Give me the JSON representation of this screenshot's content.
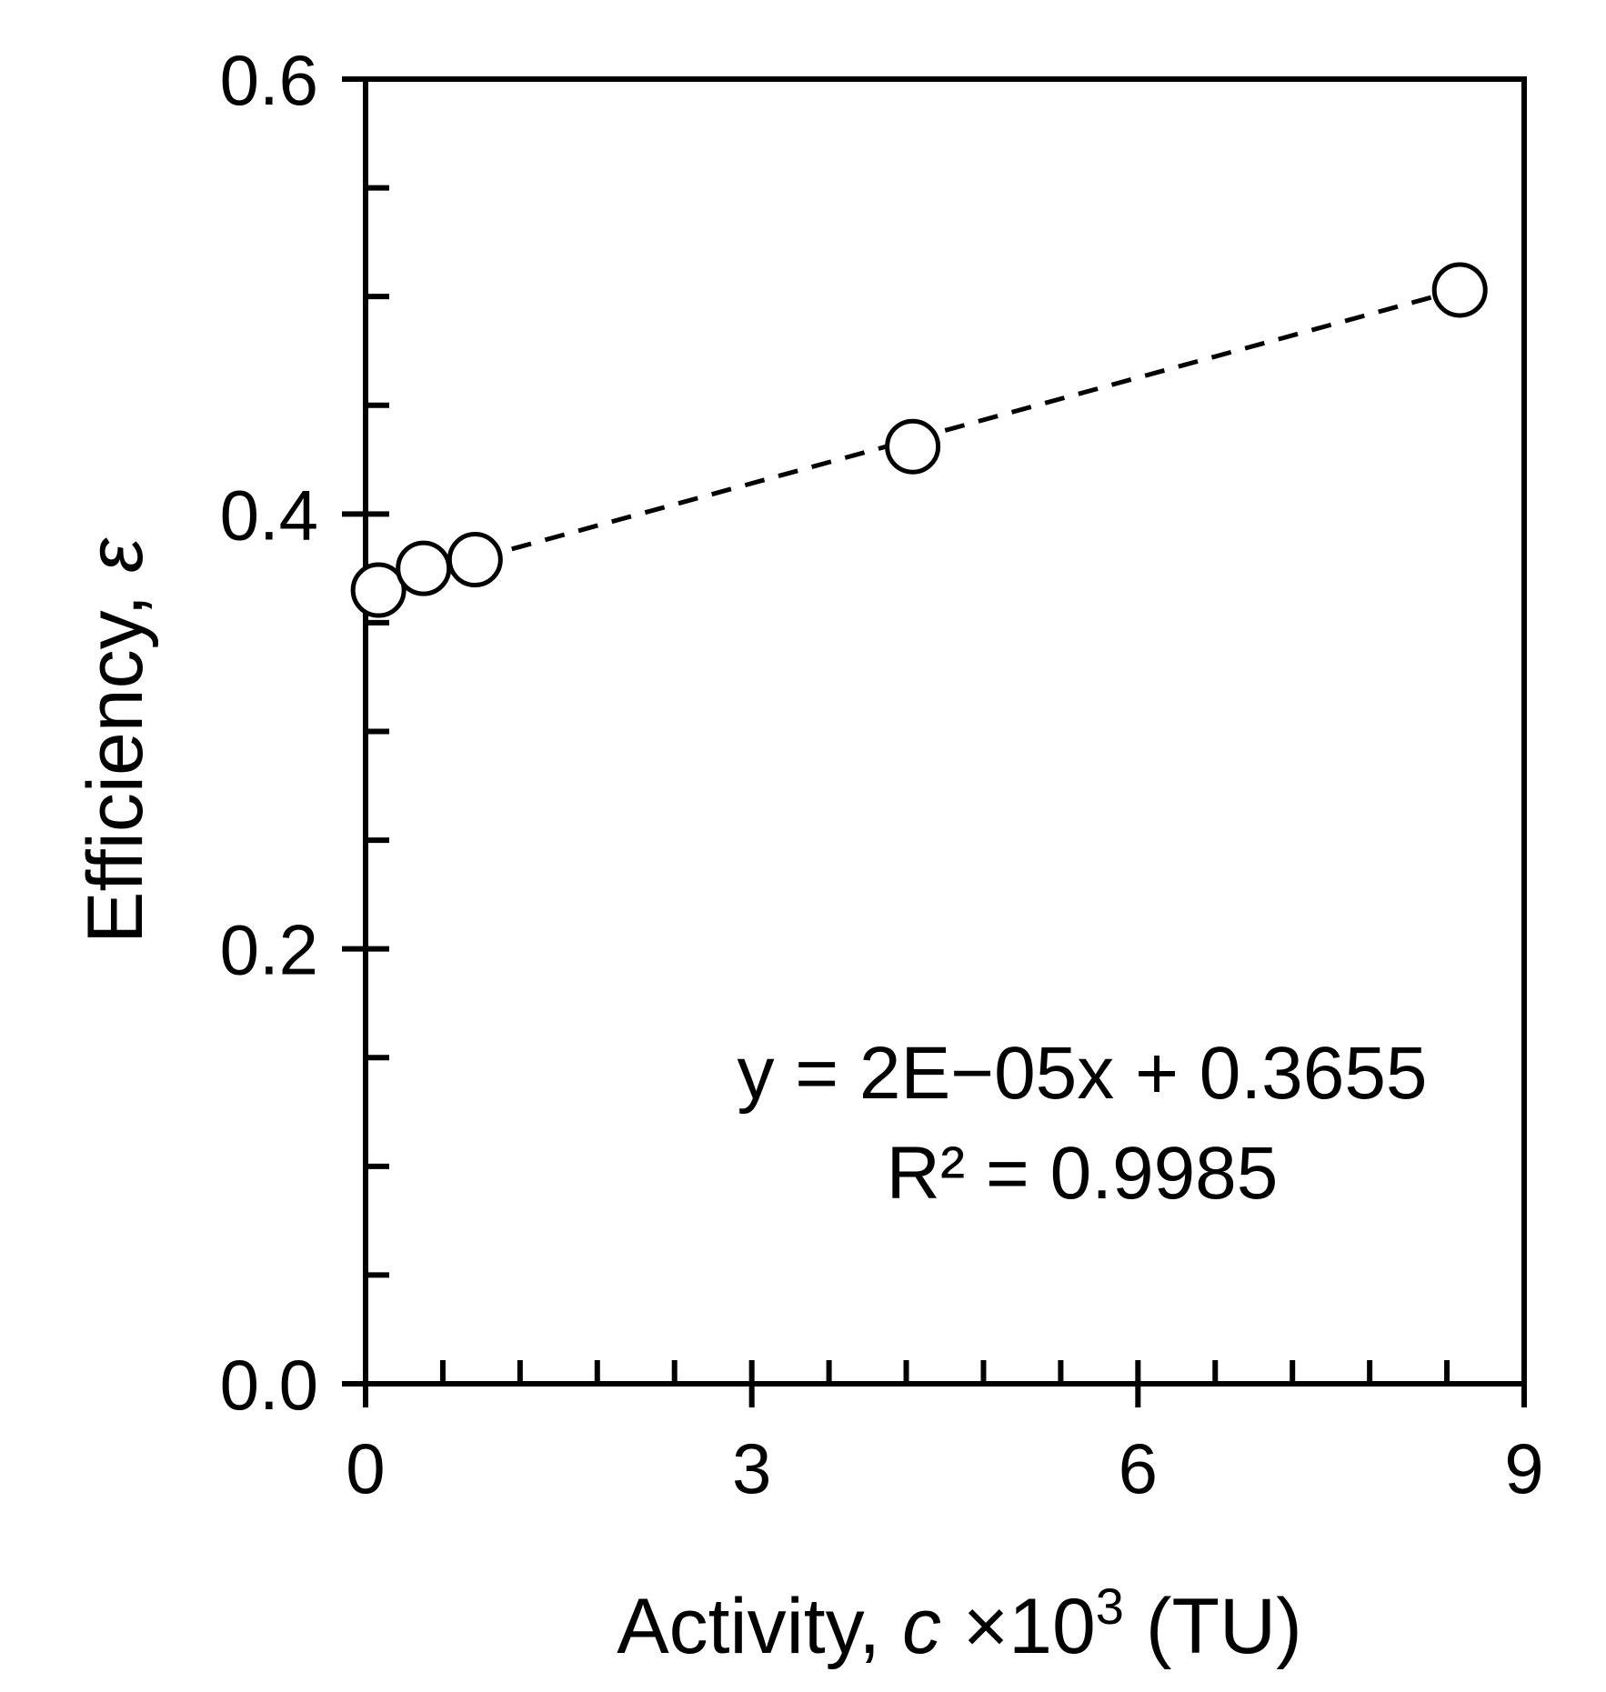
{
  "chart_data": {
    "type": "scatter",
    "xlabel": {
      "prefix": "Activity, ",
      "var": "c",
      "mult": " ×10",
      "sup": "3",
      "unit": " (TU)"
    },
    "ylabel": {
      "prefix": "Efficiency, ",
      "var": "ε"
    },
    "xlim": [
      0,
      9
    ],
    "ylim": [
      0,
      0.6
    ],
    "x_ticks": [
      0,
      3,
      6,
      9
    ],
    "x_tick_labels": [
      "0",
      "3",
      "6",
      "9"
    ],
    "x_minor_step": 0.6,
    "y_ticks": [
      0,
      0.2,
      0.4,
      0.6
    ],
    "y_tick_labels": [
      "0.0",
      "0.2",
      "0.4",
      "0.6"
    ],
    "y_minor_step": 0.05,
    "grid": false,
    "legend": "none",
    "series": [
      {
        "marker": "open-circle",
        "points": [
          {
            "x": 0.1,
            "y": 0.365
          },
          {
            "x": 0.45,
            "y": 0.375
          },
          {
            "x": 0.85,
            "y": 0.379
          },
          {
            "x": 4.25,
            "y": 0.431
          },
          {
            "x": 8.5,
            "y": 0.503
          }
        ]
      }
    ],
    "trendline": {
      "style": "dashed",
      "slope_per_unit_x": 0.0162,
      "intercept": 0.3655,
      "x_range": [
        0.1,
        8.5
      ]
    },
    "annotations": {
      "equation": "y = 2E−05x + 0.3655",
      "r_squared": "R² = 0.9985"
    }
  }
}
